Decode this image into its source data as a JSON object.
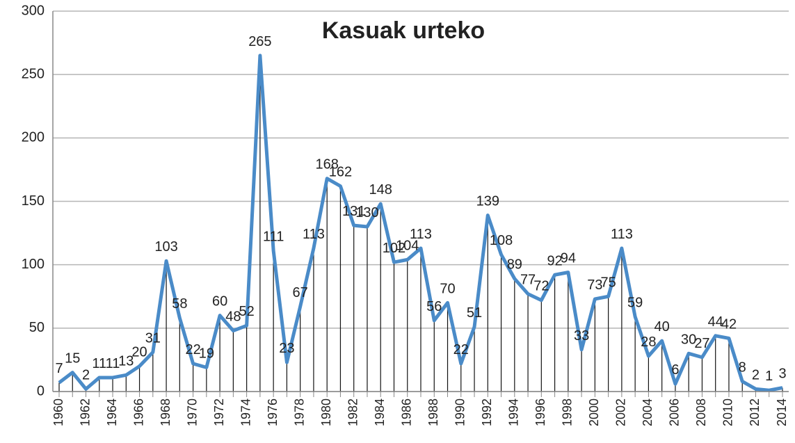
{
  "chart_data": {
    "type": "line",
    "title": "Kasuak urteko",
    "categories": [
      "1960",
      null,
      "1962",
      null,
      "1964",
      null,
      "1966",
      null,
      "1968",
      null,
      "1970",
      null,
      "1972",
      null,
      "1974",
      null,
      "1976",
      null,
      "1978",
      null,
      "1980",
      null,
      "1982",
      null,
      "1984",
      null,
      "1986",
      null,
      "1988",
      null,
      "1990",
      null,
      "1992",
      null,
      "1994",
      null,
      "1996",
      null,
      "1998",
      null,
      "2000",
      null,
      "2002",
      null,
      "2004",
      null,
      "2006",
      null,
      "2008",
      null,
      "2010",
      null,
      "2012",
      null,
      "2014"
    ],
    "values": [
      7,
      15,
      2,
      11,
      11,
      13,
      20,
      31,
      103,
      58,
      22,
      19,
      60,
      48,
      52,
      265,
      111,
      23,
      67,
      113,
      168,
      162,
      131,
      130,
      148,
      102,
      104,
      113,
      56,
      70,
      22,
      51,
      139,
      108,
      89,
      77,
      72,
      92,
      94,
      33,
      73,
      75,
      113,
      59,
      28,
      40,
      6,
      30,
      27,
      44,
      42,
      8,
      2,
      1,
      3
    ],
    "color": "#4a8bc8",
    "ylim": [
      0,
      300
    ],
    "yticks": [
      0,
      50,
      100,
      150,
      200,
      250,
      300
    ],
    "grid": true,
    "drop_lines": true
  }
}
